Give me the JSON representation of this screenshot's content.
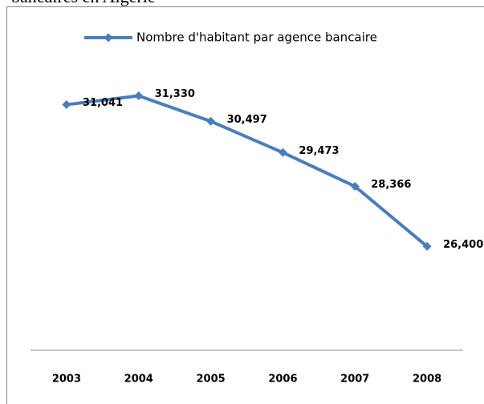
{
  "caption": "bancaires en Algérie",
  "chart_data": {
    "type": "line",
    "categories": [
      "2003",
      "2004",
      "2005",
      "2006",
      "2007",
      "2008"
    ],
    "series": [
      {
        "name": "Nombre d'habitant par agence bancaire",
        "color": "#4a7ebb",
        "values": [
          31041,
          31330,
          30497,
          29473,
          28366,
          26400
        ],
        "value_labels": [
          "31,041",
          "31,330",
          "30,497",
          "29,473",
          "28,366",
          "26,400"
        ]
      }
    ],
    "ylim": [
      23000,
      32000
    ]
  }
}
